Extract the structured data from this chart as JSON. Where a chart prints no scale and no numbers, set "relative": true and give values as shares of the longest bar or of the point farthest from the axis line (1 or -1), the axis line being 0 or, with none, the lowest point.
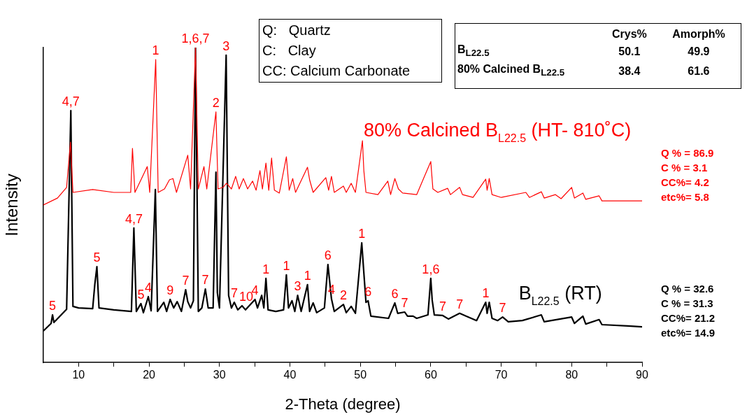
{
  "chart_data": {
    "type": "line",
    "relative": true,
    "xlabel": "2-Theta (degree)",
    "ylabel": "Intensity",
    "xlim": [
      5,
      90
    ],
    "xticks": [
      10,
      {
        "value": 15,
        "label": null
      },
      20,
      {
        "value": 25,
        "label": null
      },
      30,
      {
        "value": 35,
        "label": null
      },
      40,
      {
        "value": 45,
        "label": null
      },
      50,
      {
        "value": 55,
        "label": null
      },
      60,
      {
        "value": 65,
        "label": null
      },
      70,
      {
        "value": 75,
        "label": null
      },
      80,
      {
        "value": 85,
        "label": null
      },
      90
    ],
    "series": [
      {
        "name": "80% Calcined B$_{L22.5}$ (HT- 810˚C)",
        "color": "#ff0000",
        "x": [
          5,
          7,
          8.3,
          8.85,
          9.2,
          12,
          15,
          17.4,
          17.65,
          18.0,
          19.75,
          20.1,
          20.95,
          21.3,
          22.2,
          22.9,
          23.4,
          23.9,
          25.5,
          25.9,
          26.6,
          27.0,
          27.8,
          28.2,
          29.5,
          29.8,
          30.5,
          31.0,
          31.7,
          32.3,
          32.8,
          33.4,
          34.0,
          34.7,
          35.2,
          35.75,
          36.1,
          36.6,
          37.0,
          37.4,
          37.8,
          38.5,
          39.5,
          39.9,
          40.4,
          40.8,
          42.5,
          42.8,
          43.3,
          45.1,
          45.5,
          45.9,
          46.3,
          47.6,
          48.0,
          48.7,
          49.3,
          50.3,
          50.5,
          50.8,
          52.5,
          53.9,
          54.3,
          54.9,
          55.4,
          56.0,
          58.0,
          60.0,
          60.3,
          61.0,
          62.4,
          62.8,
          64.1,
          64.5,
          66.0,
          67.8,
          68.0,
          68.3,
          68.7,
          70.0,
          73.5,
          74.0,
          75.7,
          76.1,
          77.7,
          78.5,
          80.0,
          80.4,
          81.6,
          82.0,
          83.9,
          84.3,
          88.0,
          90.0
        ],
        "values": [
          0.5,
          0.522,
          0.556,
          0.7,
          0.54,
          0.549,
          0.54,
          0.54,
          0.68,
          0.54,
          0.622,
          0.54,
          0.962,
          0.54,
          0.551,
          0.58,
          0.584,
          0.54,
          0.658,
          0.551,
          1.0,
          0.551,
          0.622,
          0.551,
          0.796,
          0.551,
          0.556,
          0.569,
          0.551,
          0.591,
          0.551,
          0.584,
          0.551,
          0.576,
          0.547,
          0.609,
          0.551,
          0.633,
          0.547,
          0.649,
          0.547,
          0.538,
          0.653,
          0.547,
          0.584,
          0.54,
          0.62,
          0.58,
          0.54,
          0.587,
          0.547,
          0.591,
          0.54,
          0.56,
          0.54,
          0.569,
          0.54,
          0.704,
          0.609,
          0.54,
          0.533,
          0.576,
          0.533,
          0.584,
          0.551,
          0.538,
          0.533,
          0.638,
          0.551,
          0.54,
          0.553,
          0.533,
          0.556,
          0.533,
          0.524,
          0.582,
          0.547,
          0.584,
          0.533,
          0.524,
          0.54,
          0.524,
          0.542,
          0.522,
          0.533,
          0.52,
          0.556,
          0.522,
          0.538,
          0.518,
          0.529,
          0.513,
          0.513,
          0.513
        ]
      },
      {
        "name": "B$_{L22.5}$ (RT)",
        "color": "#000000",
        "x": [
          5,
          6.1,
          6.3,
          6.5,
          8.3,
          8.9,
          9.2,
          10,
          12,
          12.3,
          12.6,
          12.9,
          15,
          17.5,
          17.85,
          18.2,
          18.85,
          19.2,
          19.9,
          20.3,
          20.9,
          21.2,
          22.1,
          22.5,
          23.0,
          23.5,
          24.0,
          24.6,
          25.2,
          25.5,
          25.9,
          26.3,
          26.6,
          27.0,
          27.5,
          28.0,
          28.4,
          29.1,
          29.5,
          29.7,
          30.0,
          30.95,
          31.3,
          31.7,
          32.1,
          32.6,
          33.2,
          33.7,
          35.05,
          35.4,
          36.0,
          36.3,
          36.6,
          36.9,
          38.0,
          39.1,
          39.5,
          39.8,
          40.3,
          40.7,
          41.1,
          41.6,
          42.5,
          42.8,
          43.3,
          43.8,
          44.9,
          45.4,
          45.9,
          46.3,
          47.6,
          48.0,
          48.7,
          49.3,
          50.2,
          50.5,
          50.8,
          51.1,
          51.5,
          54.0,
          54.9,
          55.3,
          56.3,
          56.7,
          57.5,
          58.0,
          59.6,
          60.0,
          60.2,
          60.5,
          61.7,
          62.5,
          64.1,
          65.0,
          66.5,
          67.8,
          68.0,
          68.3,
          68.7,
          69.5,
          70.2,
          71.0,
          73.0,
          75.7,
          76.1,
          80.0,
          80.4,
          81.6,
          82.0,
          83.9,
          84.3,
          88.0,
          90.0
        ],
        "values": [
          0.1,
          0.124,
          0.151,
          0.127,
          0.169,
          0.8,
          0.178,
          0.173,
          0.171,
          0.247,
          0.304,
          0.173,
          0.167,
          0.162,
          0.427,
          0.162,
          0.187,
          0.158,
          0.209,
          0.164,
          0.549,
          0.162,
          0.191,
          0.162,
          0.2,
          0.173,
          0.193,
          0.162,
          0.231,
          0.193,
          0.173,
          0.196,
          1.0,
          0.162,
          0.173,
          0.233,
          0.173,
          0.173,
          0.604,
          0.222,
          0.173,
          0.976,
          0.213,
          0.173,
          0.191,
          0.167,
          0.18,
          0.167,
          0.2,
          0.173,
          0.213,
          0.173,
          0.267,
          0.167,
          0.162,
          0.167,
          0.278,
          0.173,
          0.196,
          0.162,
          0.213,
          0.162,
          0.247,
          0.162,
          0.189,
          0.158,
          0.173,
          0.311,
          0.202,
          0.162,
          0.184,
          0.158,
          0.178,
          0.156,
          0.38,
          0.284,
          0.191,
          0.196,
          0.147,
          0.14,
          0.189,
          0.156,
          0.16,
          0.147,
          0.147,
          0.14,
          0.151,
          0.267,
          0.198,
          0.151,
          0.149,
          0.138,
          0.156,
          0.147,
          0.133,
          0.191,
          0.156,
          0.191,
          0.14,
          0.133,
          0.144,
          0.129,
          0.133,
          0.151,
          0.129,
          0.144,
          0.124,
          0.147,
          0.122,
          0.136,
          0.12,
          0.116,
          0.113
        ]
      }
    ],
    "annotations": [
      {
        "text": "5",
        "x": 6.3,
        "y": 0.151
      },
      {
        "text": "4,7",
        "x": 8.9,
        "y": 0.8
      },
      {
        "text": "5",
        "x": 12.6,
        "y": 0.304
      },
      {
        "text": "4,7",
        "x": 17.85,
        "y": 0.427
      },
      {
        "text": "5",
        "x": 18.85,
        "y": 0.187
      },
      {
        "text": "4",
        "x": 19.9,
        "y": 0.209
      },
      {
        "text": "1",
        "x": 20.95,
        "y": 0.962
      },
      {
        "text": "9",
        "x": 23.0,
        "y": 0.2
      },
      {
        "text": "7",
        "x": 25.2,
        "y": 0.231
      },
      {
        "text": "1,6,7",
        "x": 26.6,
        "y": 1.0
      },
      {
        "text": "7",
        "x": 28.0,
        "y": 0.233
      },
      {
        "text": "2",
        "x": 29.5,
        "y": 0.796
      },
      {
        "text": "3",
        "x": 30.95,
        "y": 0.976
      },
      {
        "text": "7",
        "x": 32.1,
        "y": 0.191
      },
      {
        "text": "10",
        "x": 33.8,
        "y": 0.18
      },
      {
        "text": "4",
        "x": 35.05,
        "y": 0.2
      },
      {
        "text": "1",
        "x": 36.6,
        "y": 0.267
      },
      {
        "text": "1",
        "x": 39.5,
        "y": 0.278
      },
      {
        "text": "3",
        "x": 41.1,
        "y": 0.213
      },
      {
        "text": "1",
        "x": 42.5,
        "y": 0.247
      },
      {
        "text": "6",
        "x": 45.4,
        "y": 0.311
      },
      {
        "text": "4",
        "x": 45.9,
        "y": 0.202
      },
      {
        "text": "2",
        "x": 47.6,
        "y": 0.184
      },
      {
        "text": "1",
        "x": 50.2,
        "y": 0.38
      },
      {
        "text": "6",
        "x": 51.1,
        "y": 0.196
      },
      {
        "text": "6",
        "x": 54.9,
        "y": 0.189
      },
      {
        "text": "7",
        "x": 56.3,
        "y": 0.16
      },
      {
        "text": "1,6",
        "x": 60.0,
        "y": 0.267
      },
      {
        "text": "7",
        "x": 61.7,
        "y": 0.149
      },
      {
        "text": "7",
        "x": 64.1,
        "y": 0.156
      },
      {
        "text": "1",
        "x": 67.8,
        "y": 0.191
      },
      {
        "text": "7",
        "x": 70.2,
        "y": 0.144
      },
      "Q:   Quartz",
      "C:   Clay",
      "CC: Calcium Carbonate",
      "Q % = 86.9",
      "C % = 3.1",
      "CC%= 4.2",
      "etc%= 5.8",
      "Q % = 32.6",
      "C % = 31.3",
      "CC%= 21.2",
      "etc%= 14.9",
      "Crys%",
      "Amorph%",
      "B$_{L22.5}$",
      "50.1",
      "49.9",
      "80% Calcined B$_{L22.5}$",
      "38.4",
      "61.6"
    ]
  }
}
